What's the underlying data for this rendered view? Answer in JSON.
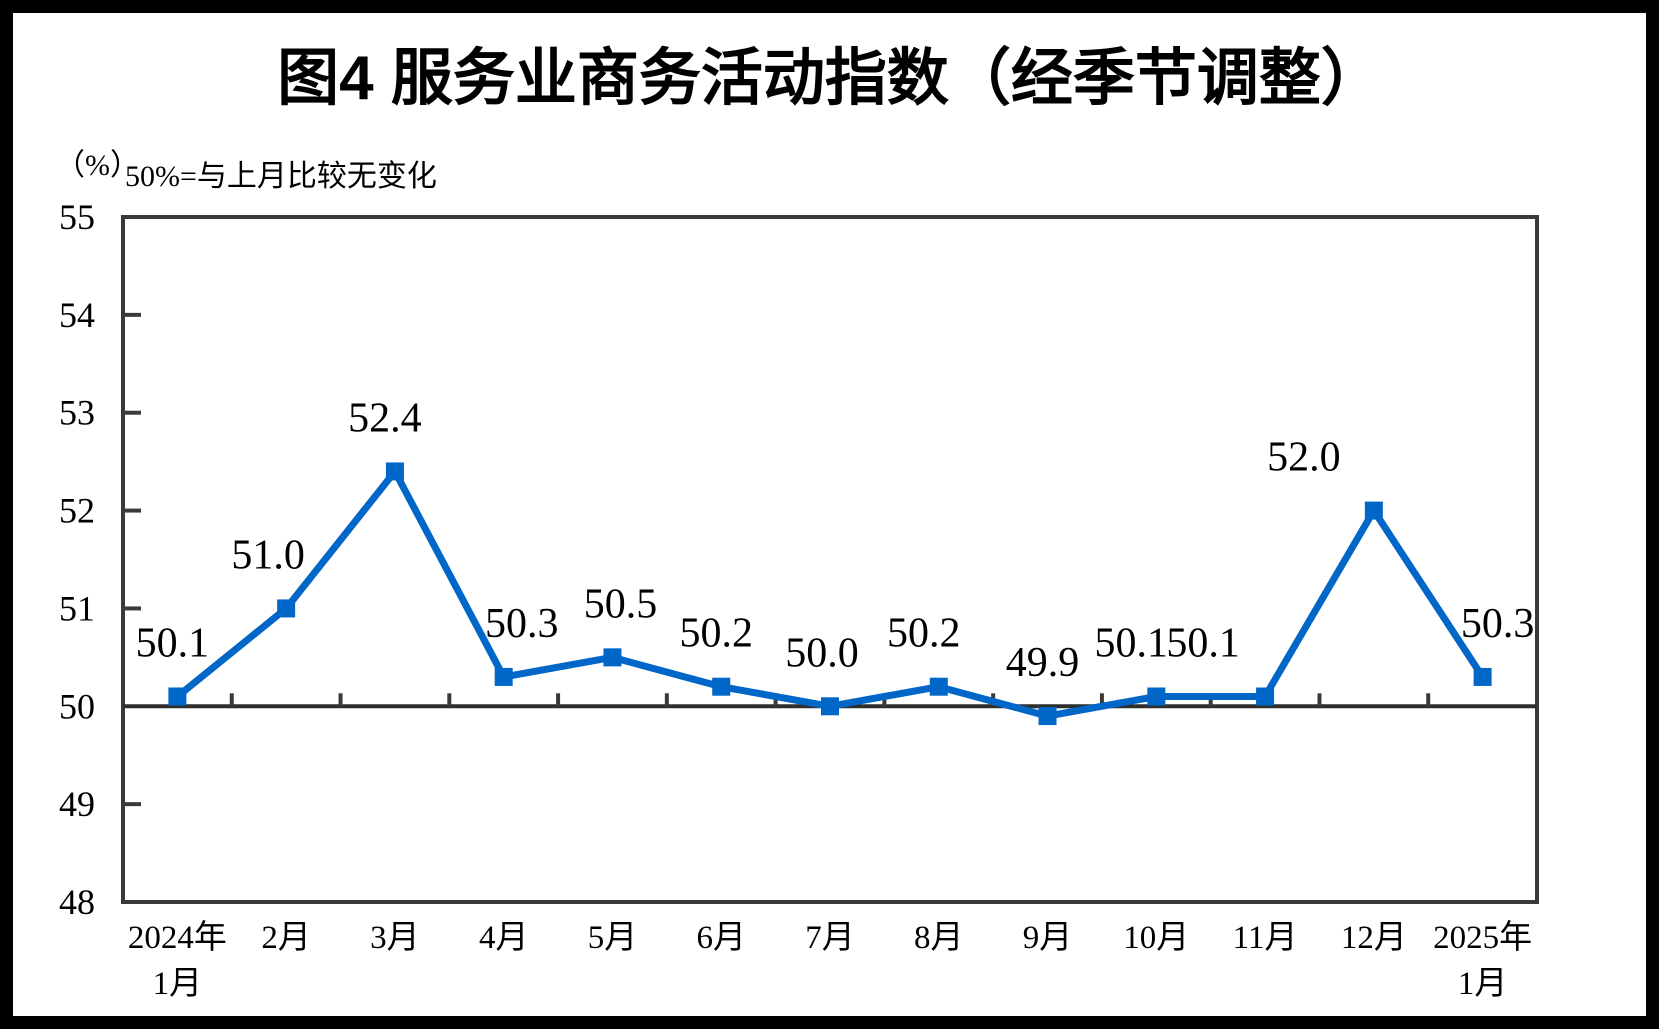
{
  "chart_data": {
    "type": "line",
    "title": "图4 服务业商务活动指数（经季节调整）",
    "unit_label": "（%）",
    "note": "50%=与上月比较无变化",
    "categories": [
      "2024年1月",
      "2月",
      "3月",
      "4月",
      "5月",
      "6月",
      "7月",
      "8月",
      "9月",
      "10月",
      "11月",
      "12月",
      "2025年1月"
    ],
    "category_lines": [
      [
        "2024年",
        "1月"
      ],
      [
        "2月"
      ],
      [
        "3月"
      ],
      [
        "4月"
      ],
      [
        "5月"
      ],
      [
        "6月"
      ],
      [
        "7月"
      ],
      [
        "8月"
      ],
      [
        "9月"
      ],
      [
        "10月"
      ],
      [
        "11月"
      ],
      [
        "12月"
      ],
      [
        "2025年",
        "1月"
      ]
    ],
    "values": [
      50.1,
      51.0,
      52.4,
      50.3,
      50.5,
      50.2,
      50.0,
      50.2,
      49.9,
      50.1,
      50.1,
      52.0,
      50.3
    ],
    "data_labels": [
      "50.1",
      "51.0",
      "52.4",
      "50.3",
      "50.5",
      "50.2",
      "50.0",
      "50.2",
      "49.9",
      "50.1",
      "50.1",
      "52.0",
      "50.3"
    ],
    "ylim": [
      48,
      55
    ],
    "yticks": [
      48,
      49,
      50,
      51,
      52,
      53,
      54,
      55
    ],
    "reference_line_y": 50,
    "grid": false,
    "legend": "none",
    "colors": {
      "line": "#0067C8",
      "marker": "#0067C8",
      "axis": "#3A3A3A",
      "reference_line": "#2E2E2E",
      "text": "#000000",
      "background": "#FFFFFF",
      "page_border": "#000000"
    }
  }
}
